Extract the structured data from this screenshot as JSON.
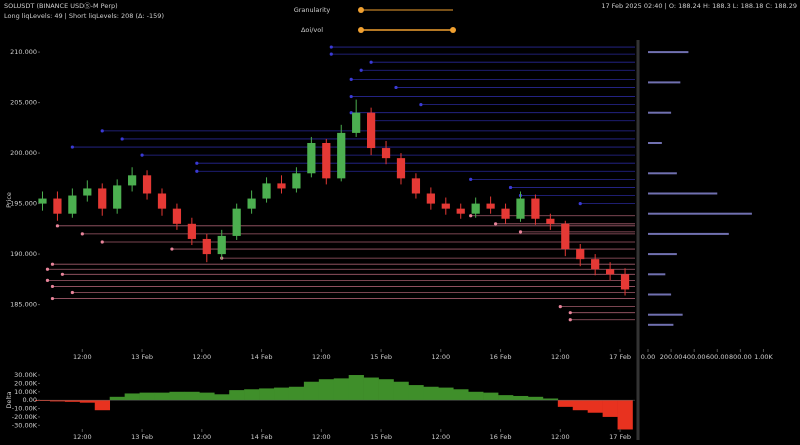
{
  "header": {
    "symbol": "SOLUSDT (BINANCE USDⓈ-M Perp)",
    "liq_summary": "Long liqLevels: 49 | Short liqLevels: 208 (Δ: -159)",
    "ohlc_info": "17 Feb 2025 02:40 | O: 188.24 H: 188.3 L: 188.18 C: 188.29"
  },
  "controls": {
    "granularity_label": "Granularity",
    "doi_vol_label": "Δoi/vol"
  },
  "chart_data": [
    {
      "type": "candlestick",
      "y_label": "Price",
      "x": [
        4,
        7,
        10,
        13,
        16,
        19,
        22,
        25,
        28,
        31,
        34,
        37,
        40,
        43,
        46,
        49,
        52,
        55,
        58,
        61,
        64,
        67,
        70,
        73,
        76,
        79,
        82,
        85,
        88,
        91,
        94,
        97,
        100,
        103,
        106,
        109,
        112,
        115,
        118,
        121
      ],
      "open": [
        195.0,
        195.5,
        194.0,
        195.8,
        196.5,
        194.5,
        196.8,
        197.8,
        196.0,
        194.5,
        193.0,
        191.5,
        190.0,
        191.8,
        194.5,
        195.5,
        197.0,
        196.5,
        198.0,
        201.0,
        197.5,
        202.0,
        204.0,
        200.5,
        199.5,
        197.5,
        196.0,
        195.0,
        194.5,
        194.0,
        195.0,
        194.5,
        193.5,
        195.5,
        193.5,
        193.0,
        190.5,
        189.5,
        188.5,
        188.0
      ],
      "high": [
        196.2,
        196.2,
        196.5,
        197.3,
        197.0,
        197.4,
        198.6,
        198.3,
        196.5,
        195.0,
        193.6,
        192.0,
        192.4,
        195.0,
        196.3,
        197.6,
        197.8,
        198.6,
        201.6,
        201.4,
        202.8,
        205.3,
        204.5,
        201.2,
        200.0,
        198.0,
        196.6,
        195.6,
        195.0,
        195.6,
        195.7,
        195.0,
        196.2,
        195.9,
        194.0,
        193.3,
        191.0,
        190.0,
        189.2,
        188.6
      ],
      "low": [
        194.3,
        193.3,
        193.6,
        195.2,
        193.8,
        194.0,
        196.2,
        195.4,
        193.8,
        192.4,
        190.9,
        189.2,
        189.5,
        191.4,
        194.0,
        195.1,
        196.0,
        196.1,
        197.6,
        196.9,
        197.2,
        201.6,
        199.8,
        198.9,
        196.9,
        195.5,
        194.4,
        193.9,
        193.5,
        193.6,
        194.0,
        193.0,
        193.2,
        192.9,
        192.4,
        189.8,
        188.8,
        187.9,
        187.4,
        185.9
      ],
      "close": [
        195.5,
        194.0,
        195.8,
        196.5,
        194.5,
        196.8,
        197.8,
        196.0,
        194.5,
        193.0,
        191.5,
        190.0,
        191.8,
        194.5,
        195.5,
        197.0,
        196.5,
        198.0,
        201.0,
        197.5,
        202.0,
        204.0,
        200.5,
        199.5,
        197.5,
        196.0,
        195.0,
        194.5,
        194.0,
        195.0,
        194.5,
        193.5,
        195.5,
        193.5,
        193.0,
        190.5,
        189.5,
        188.5,
        188.0,
        186.5
      ],
      "up_color": "#4caf50",
      "down_color": "#e53935",
      "xlim": [
        3.5,
        123
      ],
      "ylim": [
        181,
        211
      ],
      "xticks": [
        {
          "value": 12,
          "label": "12:00"
        },
        {
          "value": 24,
          "label": "13 Feb"
        },
        {
          "value": 36,
          "label": "12:00"
        },
        {
          "value": 48,
          "label": "14 Feb"
        },
        {
          "value": 60,
          "label": "12:00"
        },
        {
          "value": 72,
          "label": "15 Feb"
        },
        {
          "value": 84,
          "label": "12:00"
        },
        {
          "value": 96,
          "label": "16 Feb"
        },
        {
          "value": 108,
          "label": "12:00"
        },
        {
          "value": 120,
          "label": "17 Feb"
        }
      ],
      "yticks": [
        {
          "value": 185,
          "label": "185.000"
        },
        {
          "value": 190,
          "label": "190.000"
        },
        {
          "value": 195,
          "label": "195.000"
        },
        {
          "value": 200,
          "label": "200.000"
        },
        {
          "value": 205,
          "label": "205.000"
        },
        {
          "value": 210,
          "label": "210.000"
        }
      ],
      "long_levels": {
        "color": "#e8849a",
        "prices": [
          193.8,
          193.0,
          192.8,
          192.2,
          192.0,
          191.2,
          190.5,
          189.6,
          189.0,
          188.5,
          188.0,
          187.4,
          186.8,
          186.2,
          185.6,
          184.8,
          184.2,
          183.5
        ],
        "starts": [
          90,
          95,
          7,
          100,
          12,
          16,
          30,
          40,
          6,
          5,
          8,
          5,
          6,
          10,
          6,
          108,
          110,
          110
        ]
      },
      "short_levels": {
        "color": "#3a3ad6",
        "prices": [
          210.5,
          209.8,
          209.0,
          208.2,
          207.3,
          206.5,
          205.6,
          204.8,
          204.0,
          203.2,
          202.2,
          201.4,
          200.6,
          199.8,
          199.0,
          198.2,
          197.4,
          196.6,
          195.8,
          195.0
        ],
        "starts": [
          62,
          62,
          70,
          68,
          66,
          75,
          66,
          80,
          66,
          70,
          16,
          20,
          10,
          24,
          35,
          35,
          90,
          98,
          100,
          112
        ]
      }
    },
    {
      "type": "bar",
      "orientation": "horizontal",
      "color": "#8c8cdc",
      "y": [
        210,
        207,
        204,
        201,
        198,
        196,
        194,
        192,
        190,
        188,
        186,
        184,
        183
      ],
      "values": [
        350,
        280,
        200,
        120,
        250,
        600,
        900,
        700,
        250,
        150,
        200,
        300,
        220
      ],
      "xlim": [
        0,
        1100
      ],
      "ylim": [
        181,
        211
      ],
      "xticks": [
        {
          "value": 0,
          "label": "0.00"
        },
        {
          "value": 200,
          "label": "200.00"
        },
        {
          "value": 400,
          "label": "400.00"
        },
        {
          "value": 600,
          "label": "600.00"
        },
        {
          "value": 800,
          "label": "800.00"
        },
        {
          "value": 1000,
          "label": "1.00K"
        }
      ]
    },
    {
      "type": "delta",
      "y_label": "Delta",
      "pos_color": "#3f8f2a",
      "neg_color": "#e8321f",
      "x": [
        4,
        7,
        10,
        13,
        16,
        19,
        22,
        25,
        28,
        31,
        34,
        37,
        40,
        43,
        46,
        49,
        52,
        55,
        58,
        61,
        64,
        67,
        70,
        73,
        76,
        79,
        82,
        85,
        88,
        91,
        94,
        97,
        100,
        103,
        106,
        109,
        112,
        115,
        118,
        121
      ],
      "values": [
        -1000,
        -1500,
        -2000,
        -3000,
        -12000,
        4000,
        8000,
        9000,
        9000,
        10000,
        10000,
        9000,
        7000,
        12000,
        13000,
        14000,
        15000,
        16000,
        22000,
        25000,
        26000,
        30000,
        27000,
        25000,
        22000,
        18000,
        16000,
        15000,
        13000,
        10000,
        9000,
        6000,
        5000,
        4000,
        2000,
        -8000,
        -12000,
        -15000,
        -20000,
        -35000
      ],
      "xlim": [
        3.5,
        123
      ],
      "ylim": [
        -38000,
        36000
      ],
      "xticks": [
        {
          "value": 12,
          "label": "12:00"
        },
        {
          "value": 24,
          "label": "13 Feb"
        },
        {
          "value": 36,
          "label": "12:00"
        },
        {
          "value": 48,
          "label": "14 Feb"
        },
        {
          "value": 60,
          "label": "12:00"
        },
        {
          "value": 72,
          "label": "15 Feb"
        },
        {
          "value": 84,
          "label": "12:00"
        },
        {
          "value": 96,
          "label": "16 Feb"
        },
        {
          "value": 108,
          "label": "12:00"
        },
        {
          "value": 120,
          "label": "17 Feb"
        }
      ],
      "yticks": [
        {
          "value": -30000,
          "label": "-30.00K"
        },
        {
          "value": -20000,
          "label": "-20.00K"
        },
        {
          "value": -10000,
          "label": "-10.00K"
        },
        {
          "value": 0,
          "label": "0.00"
        },
        {
          "value": 10000,
          "label": "10.00K"
        },
        {
          "value": 20000,
          "label": "20.00K"
        },
        {
          "value": 30000,
          "label": "30.00K"
        }
      ]
    }
  ]
}
